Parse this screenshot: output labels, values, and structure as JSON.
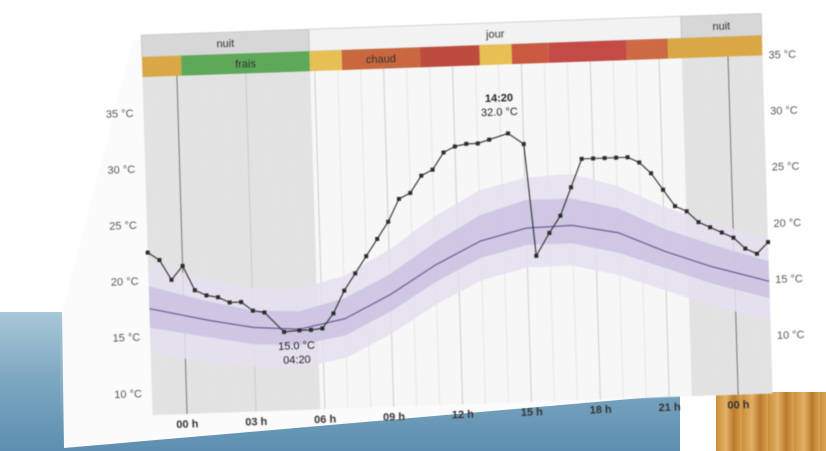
{
  "chart_data": {
    "type": "line",
    "period_labels": [
      "nuit",
      "jour",
      "nuit"
    ],
    "comfort_labels": [
      "frais",
      "chaud"
    ],
    "left_axis_ticks": [
      "35 °C",
      "30 °C",
      "25 °C",
      "20 °C",
      "15 °C",
      "10 °C"
    ],
    "right_axis_ticks": [
      "35 °C",
      "30 °C",
      "25 °C",
      "20 °C",
      "15 °C",
      "10 °C"
    ],
    "x_ticks": [
      "00 h",
      "03 h",
      "06 h",
      "09 h",
      "12 h",
      "15 h",
      "18 h",
      "21 h",
      "00 h"
    ],
    "ylim": [
      8,
      37
    ],
    "xlim": [
      -1.5,
      25.5
    ],
    "series": [
      {
        "values": [
          [
            -1.5,
            22.5
          ],
          [
            -1.0,
            21.8
          ],
          [
            -0.5,
            20.0
          ],
          [
            0.0,
            21.2
          ],
          [
            0.5,
            19.0
          ],
          [
            1.0,
            18.5
          ],
          [
            1.5,
            18.3
          ],
          [
            2.0,
            17.8
          ],
          [
            2.5,
            17.8
          ],
          [
            3.0,
            17.0
          ],
          [
            3.5,
            16.8
          ],
          [
            4.33,
            15.0
          ],
          [
            5.0,
            15.1
          ],
          [
            5.5,
            15.1
          ],
          [
            6.0,
            15.2
          ],
          [
            6.5,
            16.5
          ],
          [
            7.0,
            18.5
          ],
          [
            7.5,
            20.0
          ],
          [
            8.0,
            21.5
          ],
          [
            8.5,
            23.0
          ],
          [
            9.0,
            24.5
          ],
          [
            9.5,
            26.5
          ],
          [
            10.0,
            27.0
          ],
          [
            10.5,
            28.5
          ],
          [
            11.0,
            29.0
          ],
          [
            11.5,
            30.5
          ],
          [
            12.0,
            31.0
          ],
          [
            12.5,
            31.2
          ],
          [
            13.0,
            31.2
          ],
          [
            13.5,
            31.5
          ],
          [
            14.33,
            32.0
          ],
          [
            15.0,
            31.0
          ],
          [
            15.4,
            21.0
          ],
          [
            16.0,
            23.0
          ],
          [
            16.5,
            24.5
          ],
          [
            17.0,
            27.0
          ],
          [
            17.5,
            29.5
          ],
          [
            18.0,
            29.5
          ],
          [
            18.5,
            29.5
          ],
          [
            19.0,
            29.5
          ],
          [
            19.5,
            29.5
          ],
          [
            20.0,
            29.0
          ],
          [
            20.5,
            28.0
          ],
          [
            21.0,
            26.5
          ],
          [
            21.5,
            25.0
          ],
          [
            22.0,
            24.5
          ],
          [
            22.5,
            23.5
          ],
          [
            23.0,
            23.0
          ],
          [
            23.5,
            22.5
          ],
          [
            24.0,
            22.0
          ],
          [
            24.5,
            21.0
          ],
          [
            25.0,
            20.5
          ],
          [
            25.5,
            21.5
          ]
        ]
      }
    ],
    "normal_band": {
      "x": [
        -1.5,
        1,
        3,
        5,
        7,
        9,
        11,
        13,
        15,
        17,
        19,
        21,
        23,
        25.5
      ],
      "median": [
        17.5,
        16.3,
        15.5,
        15.2,
        16.0,
        18.0,
        20.5,
        22.5,
        23.5,
        23.6,
        22.8,
        21.0,
        19.5,
        18.0
      ],
      "inner_low": [
        15.8,
        14.8,
        14.0,
        13.8,
        14.5,
        16.5,
        19.0,
        21.0,
        22.0,
        22.0,
        21.0,
        19.5,
        18.0,
        16.5
      ],
      "inner_high": [
        19.5,
        18.0,
        17.0,
        16.8,
        17.8,
        19.8,
        22.5,
        24.8,
        26.0,
        26.0,
        25.0,
        23.0,
        21.5,
        19.8
      ],
      "outer_low": [
        13.5,
        12.5,
        12.0,
        11.8,
        12.5,
        14.5,
        17.0,
        19.0,
        20.0,
        20.0,
        19.0,
        17.5,
        16.0,
        14.5
      ],
      "outer_high": [
        21.5,
        20.0,
        19.0,
        18.8,
        19.8,
        22.0,
        24.8,
        27.0,
        28.0,
        28.2,
        27.0,
        25.0,
        23.5,
        21.8
      ]
    },
    "night_shading": [
      [
        -1.5,
        5.8
      ],
      [
        22.0,
        25.5
      ]
    ],
    "comfort_bar": [
      {
        "from": -1.5,
        "to": 0.2,
        "color": "#d9a845"
      },
      {
        "from": 0.2,
        "to": 5.8,
        "color": "#5ea85a",
        "label_index": 0
      },
      {
        "from": 5.8,
        "to": 7.2,
        "color": "#e6c055"
      },
      {
        "from": 7.2,
        "to": 10.6,
        "color": "#c9673f",
        "label_index": 1
      },
      {
        "from": 10.6,
        "to": 13.2,
        "color": "#bd4c3f"
      },
      {
        "from": 13.2,
        "to": 14.6,
        "color": "#e6c055"
      },
      {
        "from": 14.6,
        "to": 16.2,
        "color": "#c95a40"
      },
      {
        "from": 16.2,
        "to": 19.6,
        "color": "#c44b45"
      },
      {
        "from": 19.6,
        "to": 21.4,
        "color": "#cc6a43"
      },
      {
        "from": 21.4,
        "to": 25.5,
        "color": "#d9a845"
      }
    ],
    "annotations": [
      {
        "time": "04:20",
        "value": "15.0 °C",
        "x": 4.33,
        "y": 15.0
      },
      {
        "time": "14:20",
        "value": "32.0 °C",
        "x": 14.33,
        "y": 32.0
      }
    ],
    "colors": {
      "line": "#2b2b2b",
      "band_outer": "#e4dff0",
      "band_inner": "#c9bfe0",
      "median": "#6d5f93",
      "night": "#dcdcdc",
      "header": "#d7d7d7"
    }
  }
}
